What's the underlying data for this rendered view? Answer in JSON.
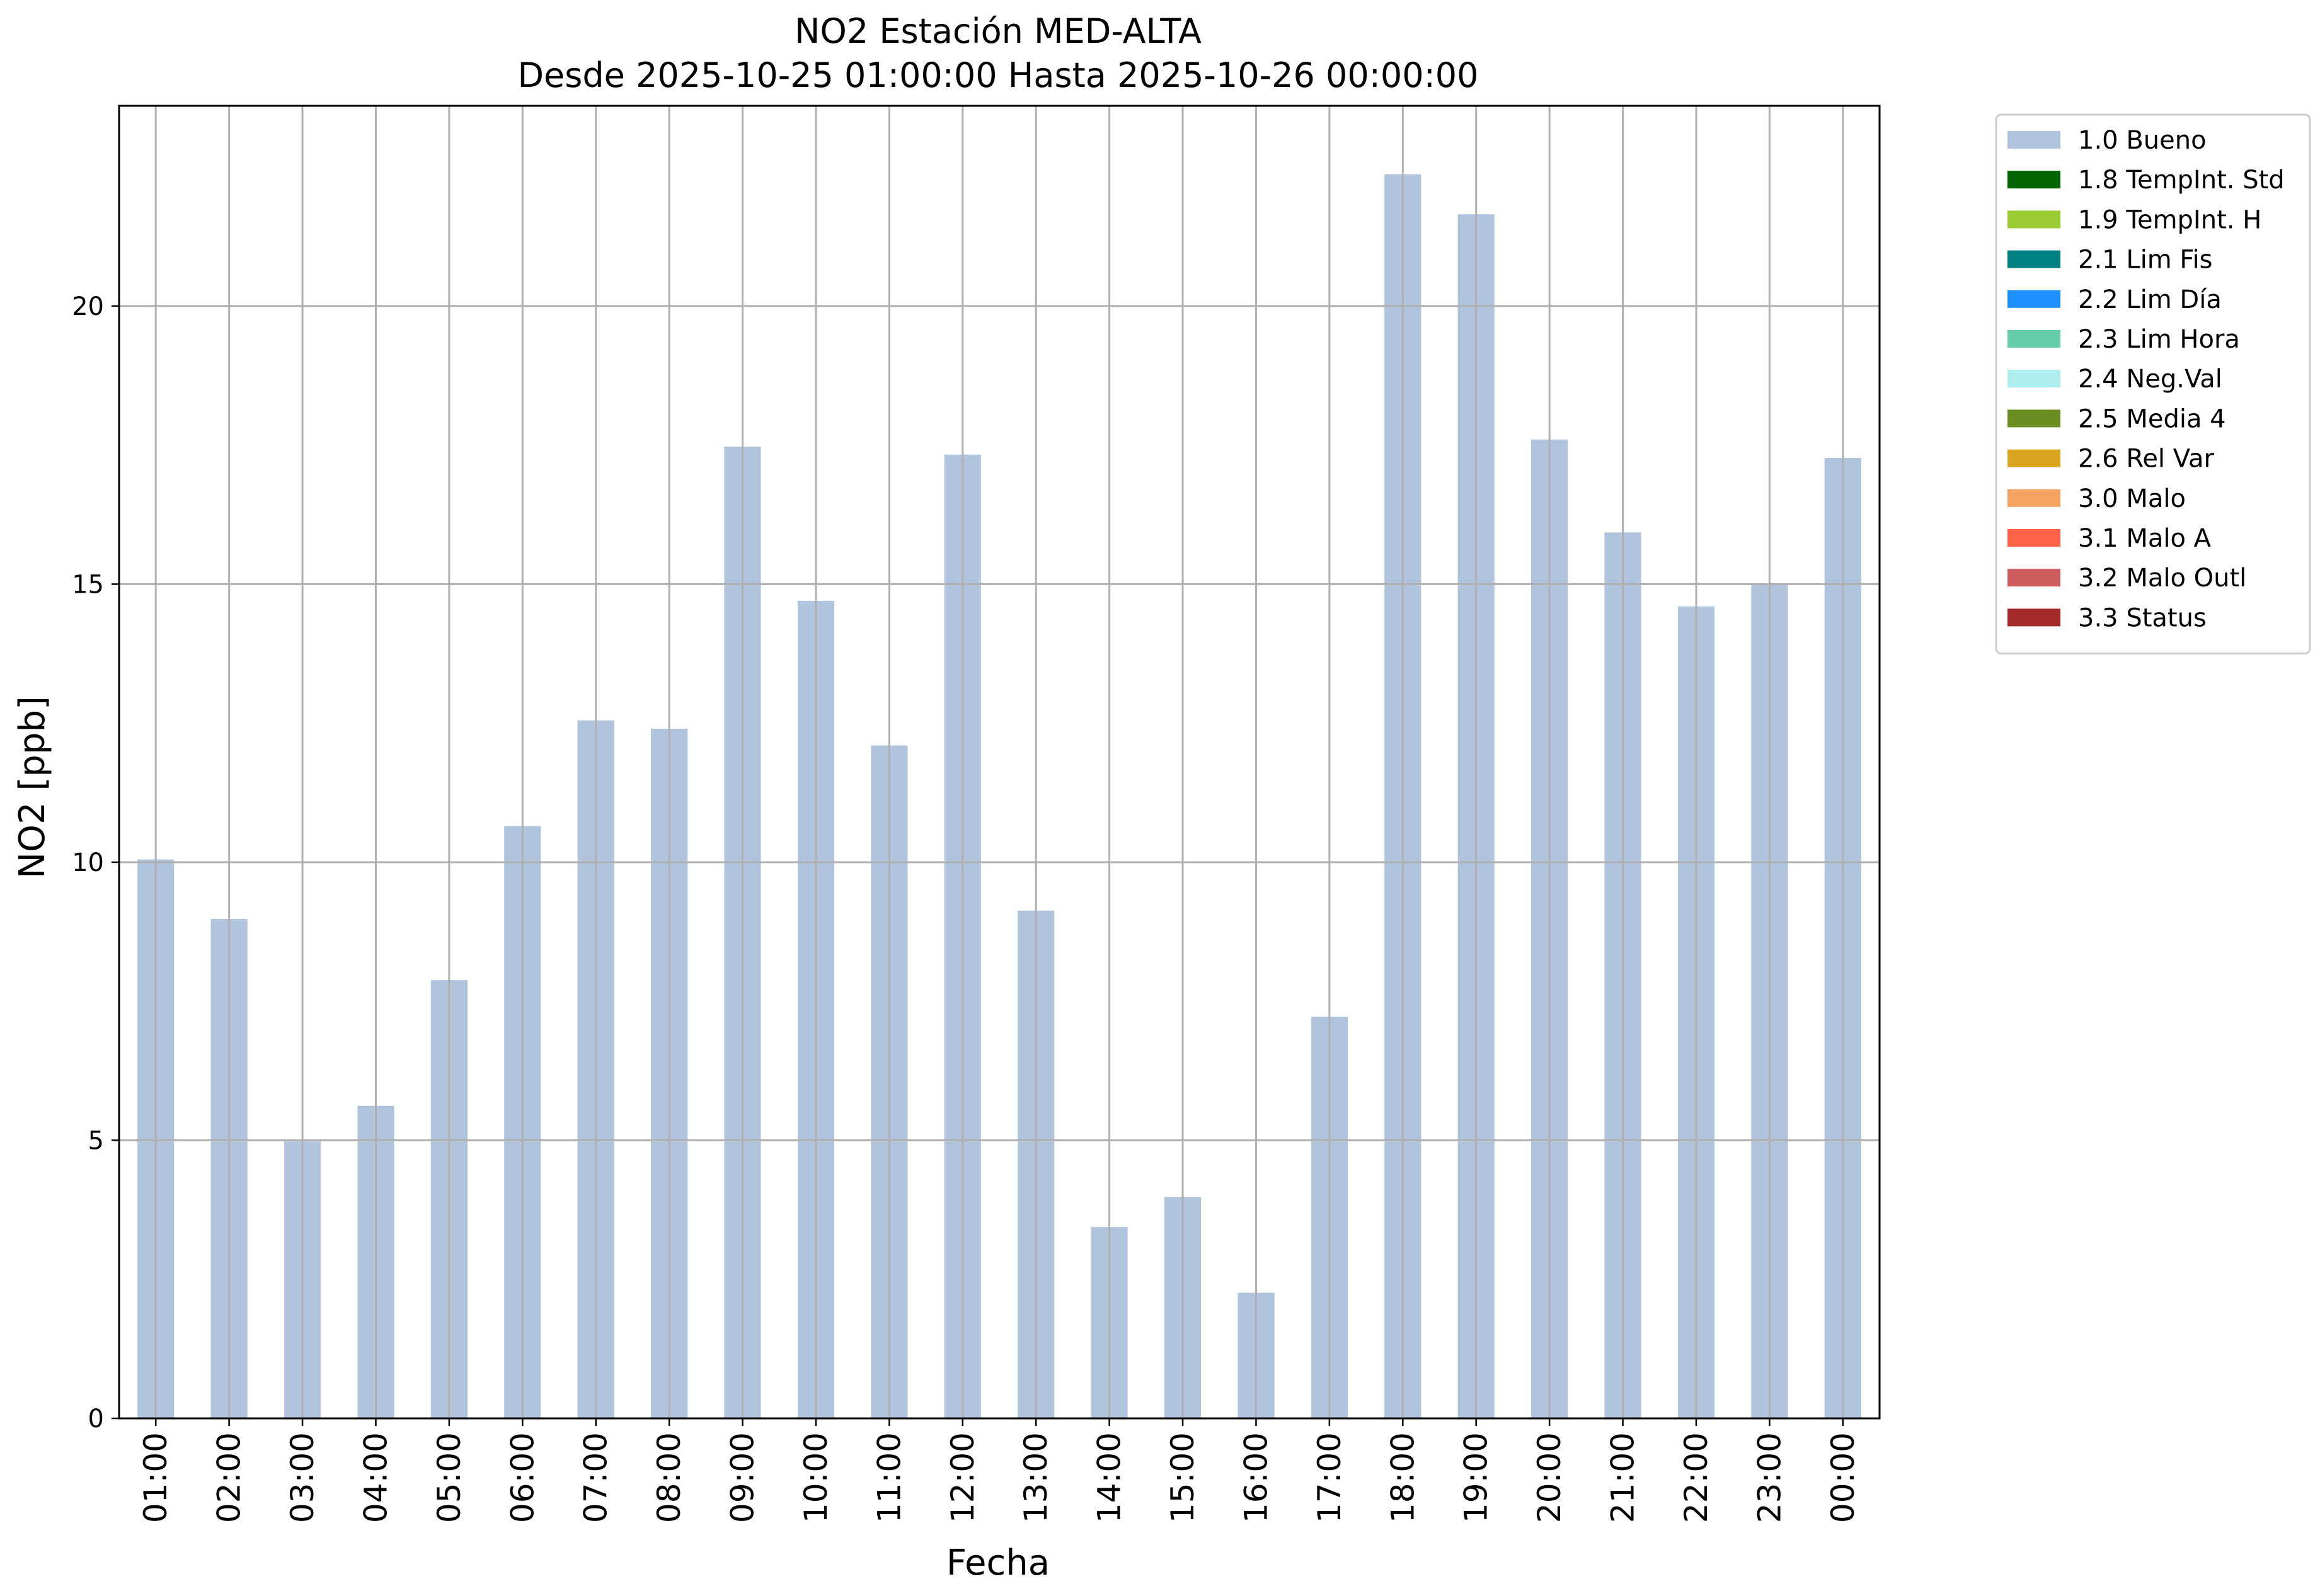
{
  "chart_data": {
    "type": "bar",
    "title": "NO2 Estación MED-ALTA",
    "subtitle": "Desde 2025-10-25 01:00:00 Hasta 2025-10-26 00:00:00",
    "xlabel": "Fecha",
    "ylabel": "NO2 [ppb]",
    "ylim": [
      0,
      23.6
    ],
    "yticks": [
      0,
      5,
      10,
      15,
      20
    ],
    "grid": true,
    "legend_position": "outside-right",
    "bar_color": "#b0c4de",
    "categories": [
      "01:00",
      "02:00",
      "03:00",
      "04:00",
      "05:00",
      "06:00",
      "07:00",
      "08:00",
      "09:00",
      "10:00",
      "11:00",
      "12:00",
      "13:00",
      "14:00",
      "15:00",
      "16:00",
      "17:00",
      "18:00",
      "19:00",
      "20:00",
      "21:00",
      "22:00",
      "23:00",
      "00:00"
    ],
    "series": [
      {
        "name": "1.0 Bueno",
        "color": "#b0c4de",
        "values": [
          10.05,
          8.98,
          4.98,
          5.62,
          7.88,
          10.65,
          12.55,
          12.4,
          17.47,
          14.7,
          12.1,
          17.33,
          9.13,
          3.44,
          3.98,
          2.26,
          7.22,
          22.37,
          21.65,
          17.6,
          15.93,
          14.6,
          15.0,
          17.27
        ]
      }
    ],
    "legend": [
      {
        "label": "1.0 Bueno",
        "color": "#b0c4de"
      },
      {
        "label": "1.8 TempInt. Std",
        "color": "#006400"
      },
      {
        "label": "1.9 TempInt. H",
        "color": "#9acd32"
      },
      {
        "label": "2.1 Lim Fis",
        "color": "#008080"
      },
      {
        "label": "2.2 Lim Día",
        "color": "#1e90ff"
      },
      {
        "label": "2.3 Lim Hora",
        "color": "#66cdaa"
      },
      {
        "label": "2.4 Neg.Val",
        "color": "#afeeee"
      },
      {
        "label": "2.5 Media 4",
        "color": "#6b8e23"
      },
      {
        "label": "2.6 Rel Var",
        "color": "#daa520"
      },
      {
        "label": "3.0 Malo",
        "color": "#f4a460"
      },
      {
        "label": "3.1 Malo A",
        "color": "#ff6347"
      },
      {
        "label": "3.2 Malo Outl",
        "color": "#cd5c5c"
      },
      {
        "label": "3.3 Status",
        "color": "#a52a2a"
      }
    ]
  }
}
